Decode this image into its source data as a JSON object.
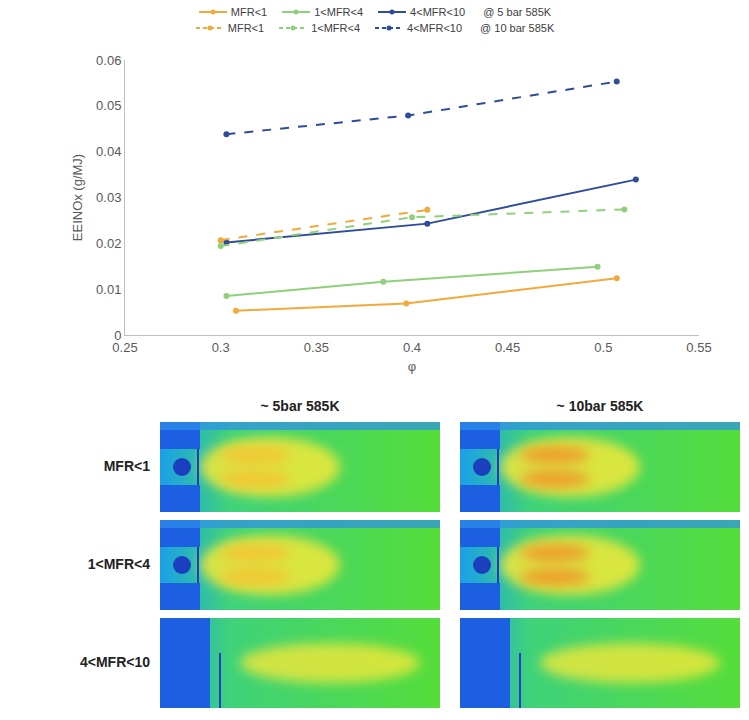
{
  "chart_data": {
    "type": "line",
    "xlabel": "φ",
    "ylabel": "EEINOx (g/MJ)",
    "xlim": [
      0.25,
      0.55
    ],
    "xticks": [
      0.25,
      0.3,
      0.35,
      0.4,
      0.45,
      0.5,
      0.55
    ],
    "ylim": [
      0,
      0.06
    ],
    "yticks": [
      0,
      0.01,
      0.02,
      0.03,
      0.04,
      0.05,
      0.06
    ],
    "grid": false,
    "legend": "top",
    "annotations": [
      "@ 5 bar 585K",
      "@ 10 bar 585K"
    ],
    "series": [
      {
        "name": "MFR<1",
        "color": "#f2a93b",
        "line_style": "solid",
        "marker": "circle",
        "x": [
          0.308,
          0.397,
          0.507
        ],
        "values": [
          0.0053,
          0.0069,
          0.0124
        ]
      },
      {
        "name": "1<MFR<4",
        "color": "#8fd17a",
        "line_style": "solid",
        "marker": "circle",
        "x": [
          0.303,
          0.385,
          0.497
        ],
        "values": [
          0.0085,
          0.0116,
          0.0149
        ]
      },
      {
        "name": "4<MFR<10",
        "color": "#2e4c9c",
        "line_style": "solid",
        "marker": "circle",
        "x": [
          0.303,
          0.408,
          0.517
        ],
        "values": [
          0.0202,
          0.0243,
          0.0339
        ]
      },
      {
        "name": "MFR<1",
        "color": "#f2a93b",
        "line_style": "dash",
        "marker": "circle",
        "x": [
          0.3,
          0.408
        ],
        "values": [
          0.0207,
          0.0273
        ]
      },
      {
        "name": "1<MFR<4",
        "color": "#8fd17a",
        "line_style": "dash",
        "marker": "circle",
        "x": [
          0.3,
          0.4,
          0.511
        ],
        "values": [
          0.0194,
          0.0257,
          0.0274
        ]
      },
      {
        "name": "4<MFR<10",
        "color": "#2e4c9c",
        "line_style": "dash",
        "marker": "circle",
        "x": [
          0.303,
          0.398,
          0.507
        ],
        "values": [
          0.0438,
          0.0479,
          0.0553
        ]
      }
    ]
  },
  "contour_panels": {
    "columns": [
      "~ 5bar 585K",
      "~ 10bar 585K"
    ],
    "rows": [
      "MFR<1",
      "1<MFR<4",
      "4<MFR<10"
    ]
  }
}
